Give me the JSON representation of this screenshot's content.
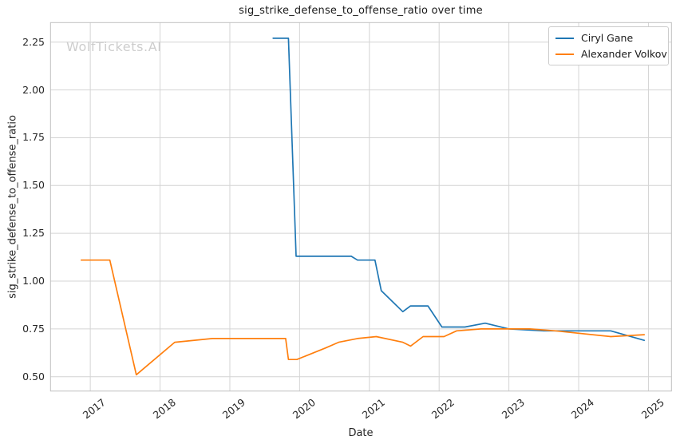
{
  "watermark": "WolfTickets.AI",
  "colors": {
    "background": "#ffffff",
    "grid": "#d4d4d4",
    "spine": "#bfbfbf",
    "tick_text": "#262626",
    "title_text": "#1a1a1a",
    "watermark_text": "#cdcdcd",
    "gane_blue": "#1f77b4",
    "volkov_orange": "#ff7f0e"
  },
  "chart_data": {
    "type": "line",
    "title": "sig_strike_defense_to_offense_ratio over time",
    "xlabel": "Date",
    "ylabel": "sig_strike_defense_to_offense_ratio",
    "grid": true,
    "legend_position": "upper right",
    "xlim": [
      2016.43,
      2025.33
    ],
    "ylim": [
      0.425,
      2.352
    ],
    "x_ticks": [
      2017,
      2018,
      2019,
      2020,
      2021,
      2022,
      2023,
      2024,
      2025
    ],
    "y_ticks": [
      0.5,
      0.75,
      1.0,
      1.25,
      1.5,
      1.75,
      2.0,
      2.25
    ],
    "series": [
      {
        "name": "Ciryl Gane",
        "color": "#1f77b4",
        "points": [
          [
            2019.62,
            2.27
          ],
          [
            2019.84,
            2.27
          ],
          [
            2019.95,
            1.13
          ],
          [
            2020.74,
            1.13
          ],
          [
            2020.83,
            1.11
          ],
          [
            2021.08,
            1.11
          ],
          [
            2021.17,
            0.95
          ],
          [
            2021.48,
            0.84
          ],
          [
            2021.59,
            0.87
          ],
          [
            2021.84,
            0.87
          ],
          [
            2022.04,
            0.76
          ],
          [
            2022.37,
            0.76
          ],
          [
            2022.66,
            0.78
          ],
          [
            2023.0,
            0.75
          ],
          [
            2023.5,
            0.74
          ],
          [
            2024.46,
            0.74
          ],
          [
            2024.94,
            0.69
          ]
        ]
      },
      {
        "name": "Alexander Volkov",
        "color": "#ff7f0e",
        "points": [
          [
            2016.87,
            1.11
          ],
          [
            2017.28,
            1.11
          ],
          [
            2017.66,
            0.51
          ],
          [
            2018.21,
            0.68
          ],
          [
            2018.75,
            0.7
          ],
          [
            2019.35,
            0.7
          ],
          [
            2019.8,
            0.7
          ],
          [
            2019.84,
            0.59
          ],
          [
            2019.96,
            0.59
          ],
          [
            2020.37,
            0.65
          ],
          [
            2020.56,
            0.68
          ],
          [
            2020.83,
            0.7
          ],
          [
            2021.1,
            0.71
          ],
          [
            2021.48,
            0.68
          ],
          [
            2021.59,
            0.66
          ],
          [
            2021.77,
            0.71
          ],
          [
            2022.07,
            0.71
          ],
          [
            2022.25,
            0.74
          ],
          [
            2022.6,
            0.75
          ],
          [
            2023.3,
            0.75
          ],
          [
            2023.67,
            0.74
          ],
          [
            2024.46,
            0.71
          ],
          [
            2024.94,
            0.72
          ]
        ]
      }
    ]
  }
}
